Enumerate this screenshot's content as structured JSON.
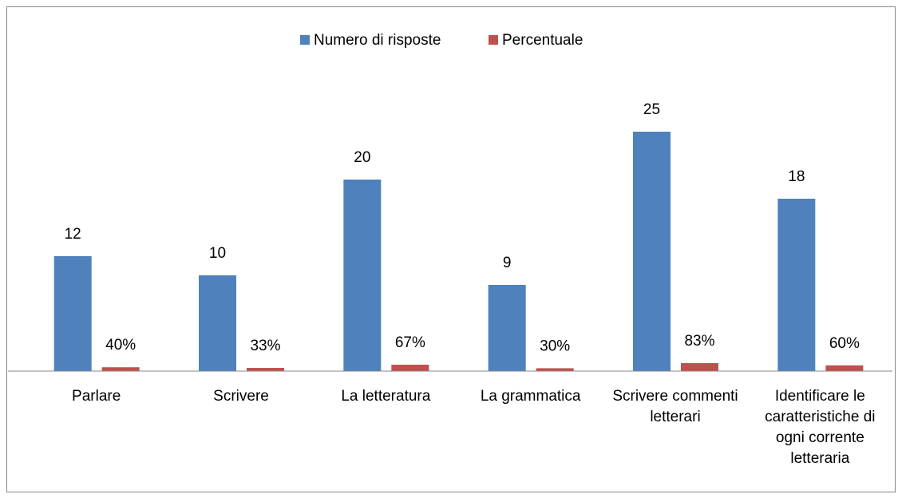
{
  "chart_data": {
    "type": "bar",
    "categories": [
      "Parlare",
      "Scrivere",
      "La letteratura",
      "La grammatica",
      "Scrivere commenti letterari",
      "Identificare le caratteristiche di ogni corrente letteraria"
    ],
    "series": [
      {
        "name": "Numero di risposte",
        "color": "#4f81bd",
        "values": [
          12,
          10,
          20,
          9,
          25,
          18
        ]
      },
      {
        "name": "Percentuale",
        "color": "#c0504d",
        "values": [
          0.4,
          0.33,
          0.67,
          0.3,
          0.83,
          0.6
        ],
        "value_labels": [
          "40%",
          "33%",
          "67%",
          "30%",
          "83%",
          "60%"
        ]
      }
    ],
    "ylim": [
      0,
      30
    ],
    "legend": "top"
  }
}
